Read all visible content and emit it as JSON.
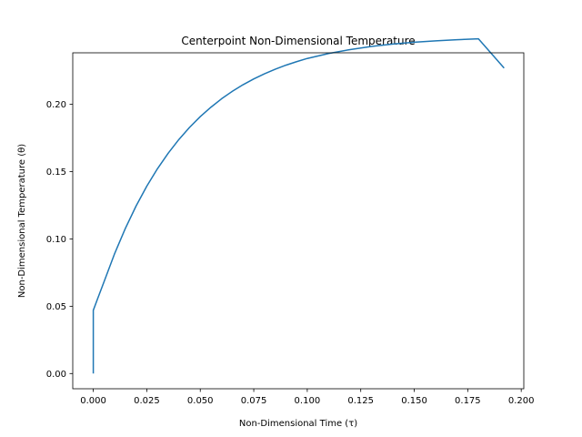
{
  "chart_data": {
    "type": "line",
    "title": "Centerpoint Non-Dimensional Temperature",
    "xlabel": "Non-Dimensional Time (τ)",
    "ylabel": "Non-Dimensional Temperature (θ)",
    "xlim": [
      -0.0096,
      0.2012
    ],
    "ylim": [
      -0.0113,
      0.2383
    ],
    "xticks": [
      0.0,
      0.025,
      0.05,
      0.075,
      0.1,
      0.125,
      0.15,
      0.175,
      0.2
    ],
    "xtick_labels": [
      "0.000",
      "0.025",
      "0.050",
      "0.075",
      "0.100",
      "0.125",
      "0.150",
      "0.175",
      "0.200"
    ],
    "yticks": [
      0.0,
      0.05,
      0.1,
      0.15,
      0.2
    ],
    "ytick_labels": [
      "0.00",
      "0.05",
      "0.10",
      "0.15",
      "0.20"
    ],
    "grid": false,
    "series": [
      {
        "color": "#1f77b4",
        "x": [
          0.0,
          0.0,
          0.002,
          0.005,
          0.01,
          0.015,
          0.02,
          0.025,
          0.03,
          0.035,
          0.04,
          0.045,
          0.05,
          0.055,
          0.06,
          0.065,
          0.07,
          0.075,
          0.08,
          0.085,
          0.09,
          0.095,
          0.1,
          0.11,
          0.12,
          0.13,
          0.14,
          0.15,
          0.16,
          0.17,
          0.18,
          0.192
        ],
        "y": [
          0.0,
          0.047,
          0.0555,
          0.0681,
          0.0892,
          0.1079,
          0.1245,
          0.1392,
          0.1522,
          0.1637,
          0.1739,
          0.1829,
          0.1909,
          0.1979,
          0.2042,
          0.2097,
          0.2146,
          0.2189,
          0.2227,
          0.2261,
          0.2291,
          0.2317,
          0.2341,
          0.2378,
          0.2407,
          0.243,
          0.2448,
          0.2462,
          0.2472,
          0.248,
          0.2487,
          0.227
        ]
      }
    ]
  }
}
